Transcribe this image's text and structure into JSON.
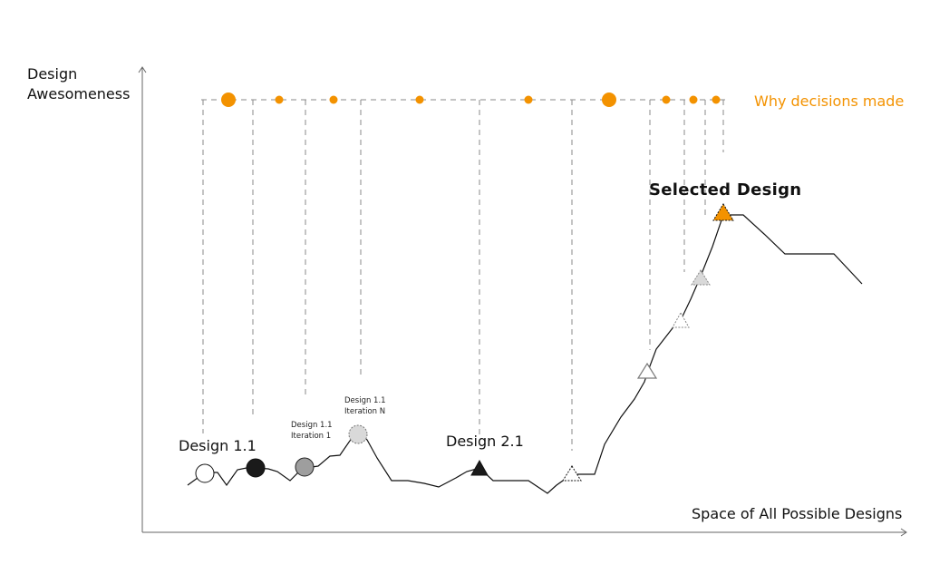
{
  "axes": {
    "y_label_line1": "Design",
    "y_label_line2": "Awesomeness",
    "x_label": "Space of All Possible Designs"
  },
  "labels": {
    "design_1_1": "Design 1.1",
    "iter1_line1": "Design 1.1",
    "iter1_line2": "Iteration 1",
    "iterN_line1": "Design 1.1",
    "iterN_line2": "Iteration N",
    "design_2_1": "Design 2.1",
    "selected": "Selected Design",
    "why": "Why decisions made"
  },
  "colors": {
    "accent": "#F39200",
    "line": "#111111",
    "guide": "#8a8a8a",
    "marker_gray": "#9e9e9e",
    "marker_light": "#d9d9d9",
    "marker_black": "#1a1a1a"
  }
}
